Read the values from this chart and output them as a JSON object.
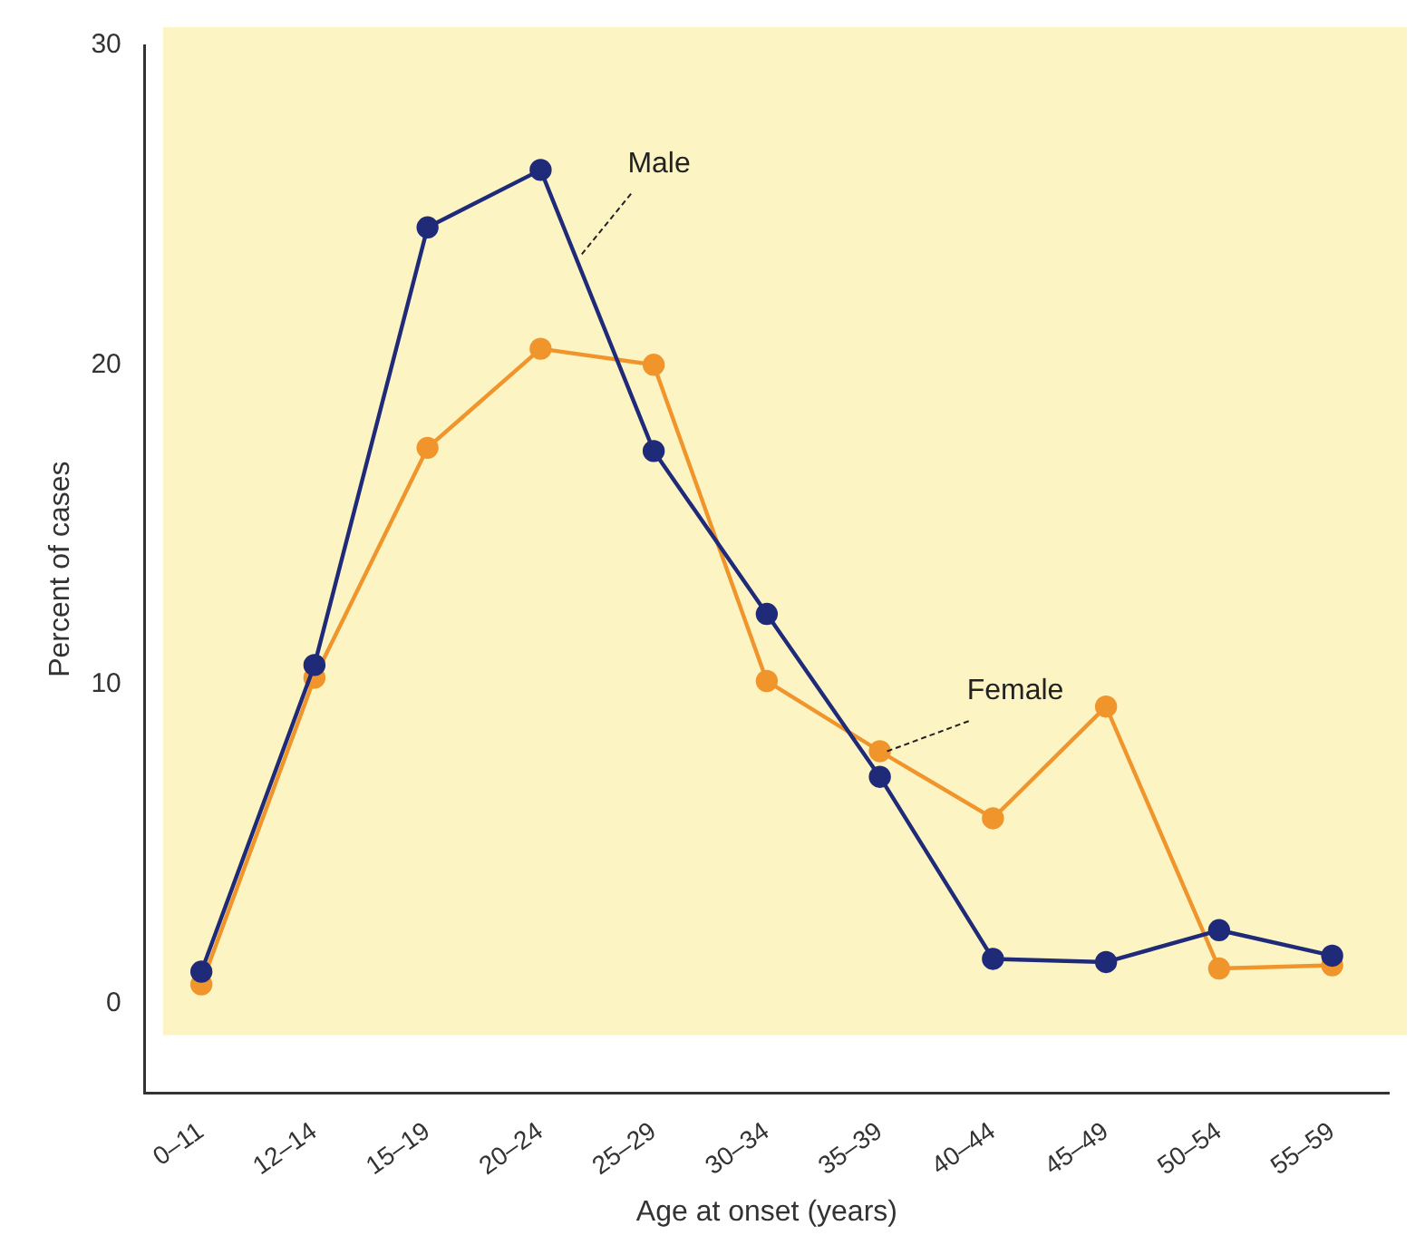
{
  "chart_data": {
    "type": "line",
    "xlabel": "Age at onset (years)",
    "ylabel": "Percent of cases",
    "categories": [
      "0–11",
      "12–14",
      "15–19",
      "20–24",
      "25–29",
      "30–34",
      "35–39",
      "40–44",
      "45–49",
      "50–54",
      "55–59"
    ],
    "series": [
      {
        "name": "Male",
        "color": "#1f2a78",
        "values": [
          1.0,
          10.6,
          24.3,
          26.1,
          17.3,
          12.2,
          7.1,
          1.4,
          1.3,
          2.3,
          1.5
        ]
      },
      {
        "name": "Female",
        "color": "#f0952c",
        "values": [
          0.6,
          10.2,
          17.4,
          20.5,
          20.0,
          10.1,
          7.9,
          5.8,
          9.3,
          1.1,
          1.2
        ]
      }
    ],
    "ylim": [
      -2.8,
      30
    ],
    "yticks": [
      0,
      10,
      20,
      30
    ],
    "grid": false,
    "legend": false,
    "marker": "circle",
    "line_style": "solid"
  }
}
